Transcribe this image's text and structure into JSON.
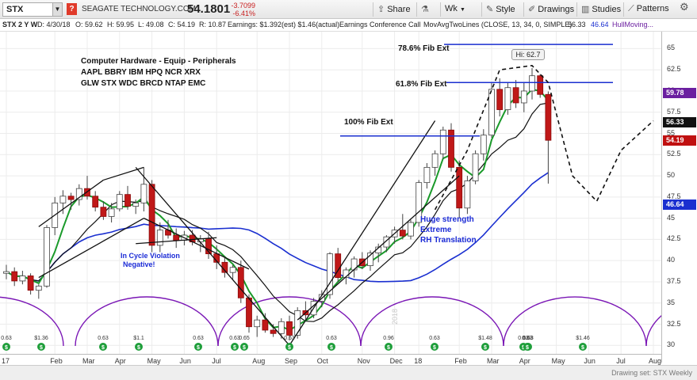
{
  "toolbar": {
    "symbol": "STX",
    "company": "SEAGATE TECHNOLOGY.COM",
    "price": "54.1801",
    "change": "-3.7099",
    "change_pct": "-6.41%",
    "buttons": [
      "Share",
      "Wk",
      "Style",
      "Drawings",
      "Studies",
      "Patterns"
    ]
  },
  "infobar": {
    "chart_id": "STX 2 Y W",
    "date": "D: 4/30/18",
    "open": "O: 59.62",
    "high": "H: 59.95",
    "low": "L: 49.08",
    "close": "C: 54.19",
    "range": "R: 10.87",
    "earnings": "Earnings: $1.392(est) $1.46(actual)",
    "call": "Earnings Conference Call",
    "study": "MovAvgTwoLines (CLOSE, 13, 34, 0, SIMPLE)",
    "ma13": "56.33",
    "ma34": "46.64",
    "hull": "HullMoving..."
  },
  "annotations": {
    "sector_title": "Computer Hardware - Equip - Peripherals",
    "tickers_1": "AAPL BBRY IBM HPQ NCR XRX",
    "tickers_2": "GLW STX WDC BRCD NTAP EMC",
    "fib_786": "78.6% Fib Ext",
    "fib_618": "61.8% Fib Ext",
    "fib_100": "100% Fib Ext",
    "hi_label": "Hi: 62.7",
    "violation_1": "In Cycle Violation",
    "violation_2": "Negative!",
    "strength_1": "Huge strength",
    "strength_2": "Extreme",
    "strength_3": "RH Translation",
    "year_watermark": "2018",
    "footer_text": "Drawing set: STX Weekly"
  },
  "price_tags": [
    {
      "value": "59.78",
      "price": 59.78,
      "color": "#6b1fa0"
    },
    {
      "value": "56.33",
      "price": 56.33,
      "color": "#111111"
    },
    {
      "value": "54.19",
      "price": 54.19,
      "color": "#c01010"
    },
    {
      "value": "46.64",
      "price": 46.64,
      "color": "#1a2fd0"
    }
  ],
  "chart_data": {
    "type": "candlestick",
    "title": "",
    "ylim": [
      29,
      67
    ],
    "yticks": [
      30,
      32.5,
      35,
      37.5,
      40,
      42.5,
      45,
      47.5,
      50,
      52.5,
      55,
      57.5,
      60,
      62.5,
      65
    ],
    "xticks": [
      {
        "label": "17",
        "i": 0
      },
      {
        "label": "Feb",
        "i": 6
      },
      {
        "label": "Mar",
        "i": 10
      },
      {
        "label": "Apr",
        "i": 14
      },
      {
        "label": "May",
        "i": 18
      },
      {
        "label": "Jun",
        "i": 22
      },
      {
        "label": "Jul",
        "i": 26
      },
      {
        "label": "Aug",
        "i": 31
      },
      {
        "label": "Sep",
        "i": 35
      },
      {
        "label": "Oct",
        "i": 39
      },
      {
        "label": "Nov",
        "i": 44
      },
      {
        "label": "Dec",
        "i": 48
      },
      {
        "label": "18",
        "i": 51
      },
      {
        "label": "Feb",
        "i": 56
      },
      {
        "label": "Mar",
        "i": 60
      },
      {
        "label": "Apr",
        "i": 64
      },
      {
        "label": "May",
        "i": 68
      },
      {
        "label": "Jun",
        "i": 72
      },
      {
        "label": "Jul",
        "i": 76
      },
      {
        "label": "Aug",
        "i": 80
      }
    ],
    "candles": [
      [
        38.5,
        39.5,
        37.8,
        38.7
      ],
      [
        38.7,
        39.2,
        37.0,
        37.6
      ],
      [
        37.6,
        38.8,
        37.2,
        38.2
      ],
      [
        38.2,
        38.5,
        36.0,
        36.5
      ],
      [
        36.5,
        37.2,
        35.5,
        37.0
      ],
      [
        37.0,
        44.2,
        36.8,
        43.9
      ],
      [
        43.9,
        47.5,
        43.0,
        46.8
      ],
      [
        46.8,
        48.3,
        45.5,
        47.6
      ],
      [
        47.6,
        48.0,
        46.0,
        47.2
      ],
      [
        47.2,
        49.0,
        46.5,
        48.5
      ],
      [
        48.5,
        50.0,
        47.2,
        47.6
      ],
      [
        47.6,
        48.2,
        45.8,
        46.3
      ],
      [
        46.3,
        47.0,
        44.8,
        45.2
      ],
      [
        45.2,
        46.8,
        44.5,
        46.1
      ],
      [
        46.1,
        48.2,
        45.8,
        47.8
      ],
      [
        47.8,
        48.8,
        46.0,
        46.4
      ],
      [
        46.4,
        47.2,
        45.5,
        46.8
      ],
      [
        46.8,
        51.0,
        45.8,
        49.0
      ],
      [
        49.0,
        49.5,
        41.0,
        41.8
      ],
      [
        41.8,
        44.5,
        41.0,
        43.6
      ],
      [
        43.6,
        44.8,
        42.6,
        43.0
      ],
      [
        43.0,
        43.8,
        41.5,
        42.4
      ],
      [
        42.4,
        43.5,
        41.8,
        43.0
      ],
      [
        43.0,
        43.6,
        41.8,
        42.2
      ],
      [
        42.2,
        43.0,
        41.0,
        42.6
      ],
      [
        42.6,
        43.4,
        40.2,
        40.8
      ],
      [
        40.8,
        41.8,
        39.0,
        39.8
      ],
      [
        39.8,
        40.5,
        38.0,
        38.6
      ],
      [
        38.6,
        39.5,
        37.8,
        39.2
      ],
      [
        39.2,
        40.0,
        35.0,
        35.6
      ],
      [
        35.6,
        36.0,
        31.5,
        32.2
      ],
      [
        32.2,
        33.5,
        31.0,
        33.0
      ],
      [
        33.0,
        33.8,
        31.5,
        31.8
      ],
      [
        31.8,
        32.5,
        31.0,
        31.4
      ],
      [
        31.4,
        33.2,
        30.8,
        32.8
      ],
      [
        32.8,
        33.5,
        30.6,
        31.2
      ],
      [
        31.2,
        34.5,
        30.8,
        34.1
      ],
      [
        34.1,
        35.2,
        33.0,
        33.6
      ],
      [
        33.6,
        35.6,
        33.2,
        35.2
      ],
      [
        35.2,
        36.5,
        34.5,
        36.0
      ],
      [
        36.0,
        41.0,
        35.5,
        40.8
      ],
      [
        40.8,
        41.5,
        37.5,
        38.0
      ],
      [
        38.0,
        39.2,
        37.2,
        38.9
      ],
      [
        38.9,
        40.5,
        38.0,
        40.2
      ],
      [
        40.2,
        41.0,
        39.0,
        39.4
      ],
      [
        39.4,
        41.2,
        38.8,
        40.9
      ],
      [
        40.9,
        42.0,
        39.8,
        41.6
      ],
      [
        41.6,
        43.0,
        41.0,
        42.8
      ],
      [
        42.8,
        44.0,
        42.0,
        43.6
      ],
      [
        43.6,
        45.5,
        42.5,
        42.9
      ],
      [
        42.9,
        44.8,
        42.5,
        44.5
      ],
      [
        44.5,
        49.5,
        44.0,
        49.2
      ],
      [
        49.2,
        51.5,
        48.5,
        51.0
      ],
      [
        51.0,
        53.0,
        50.0,
        52.6
      ],
      [
        52.6,
        55.8,
        52.0,
        55.4
      ],
      [
        55.4,
        56.2,
        50.5,
        51.0
      ],
      [
        51.0,
        51.8,
        45.0,
        46.2
      ],
      [
        46.2,
        50.0,
        45.5,
        49.4
      ],
      [
        49.4,
        53.0,
        49.0,
        52.6
      ],
      [
        52.6,
        55.5,
        51.8,
        54.8
      ],
      [
        54.8,
        61.0,
        54.5,
        60.2
      ],
      [
        60.2,
        61.5,
        57.0,
        57.8
      ],
      [
        57.8,
        61.0,
        57.2,
        60.4
      ],
      [
        60.4,
        61.3,
        58.0,
        58.6
      ],
      [
        58.6,
        61.0,
        57.5,
        60.0
      ],
      [
        60.0,
        62.7,
        59.0,
        61.8
      ],
      [
        61.8,
        62.0,
        59.2,
        59.6
      ],
      [
        59.6,
        59.95,
        49.08,
        54.19
      ]
    ],
    "dividends": [
      "0.63",
      "$1.36",
      "0.63",
      "$1.1",
      "0.63",
      "0.63",
      "0.65",
      "0.63",
      "0.63",
      "0.96",
      "0.63",
      "$1.48",
      "0.63",
      "0.63",
      "$1.46",
      "0.63"
    ]
  }
}
